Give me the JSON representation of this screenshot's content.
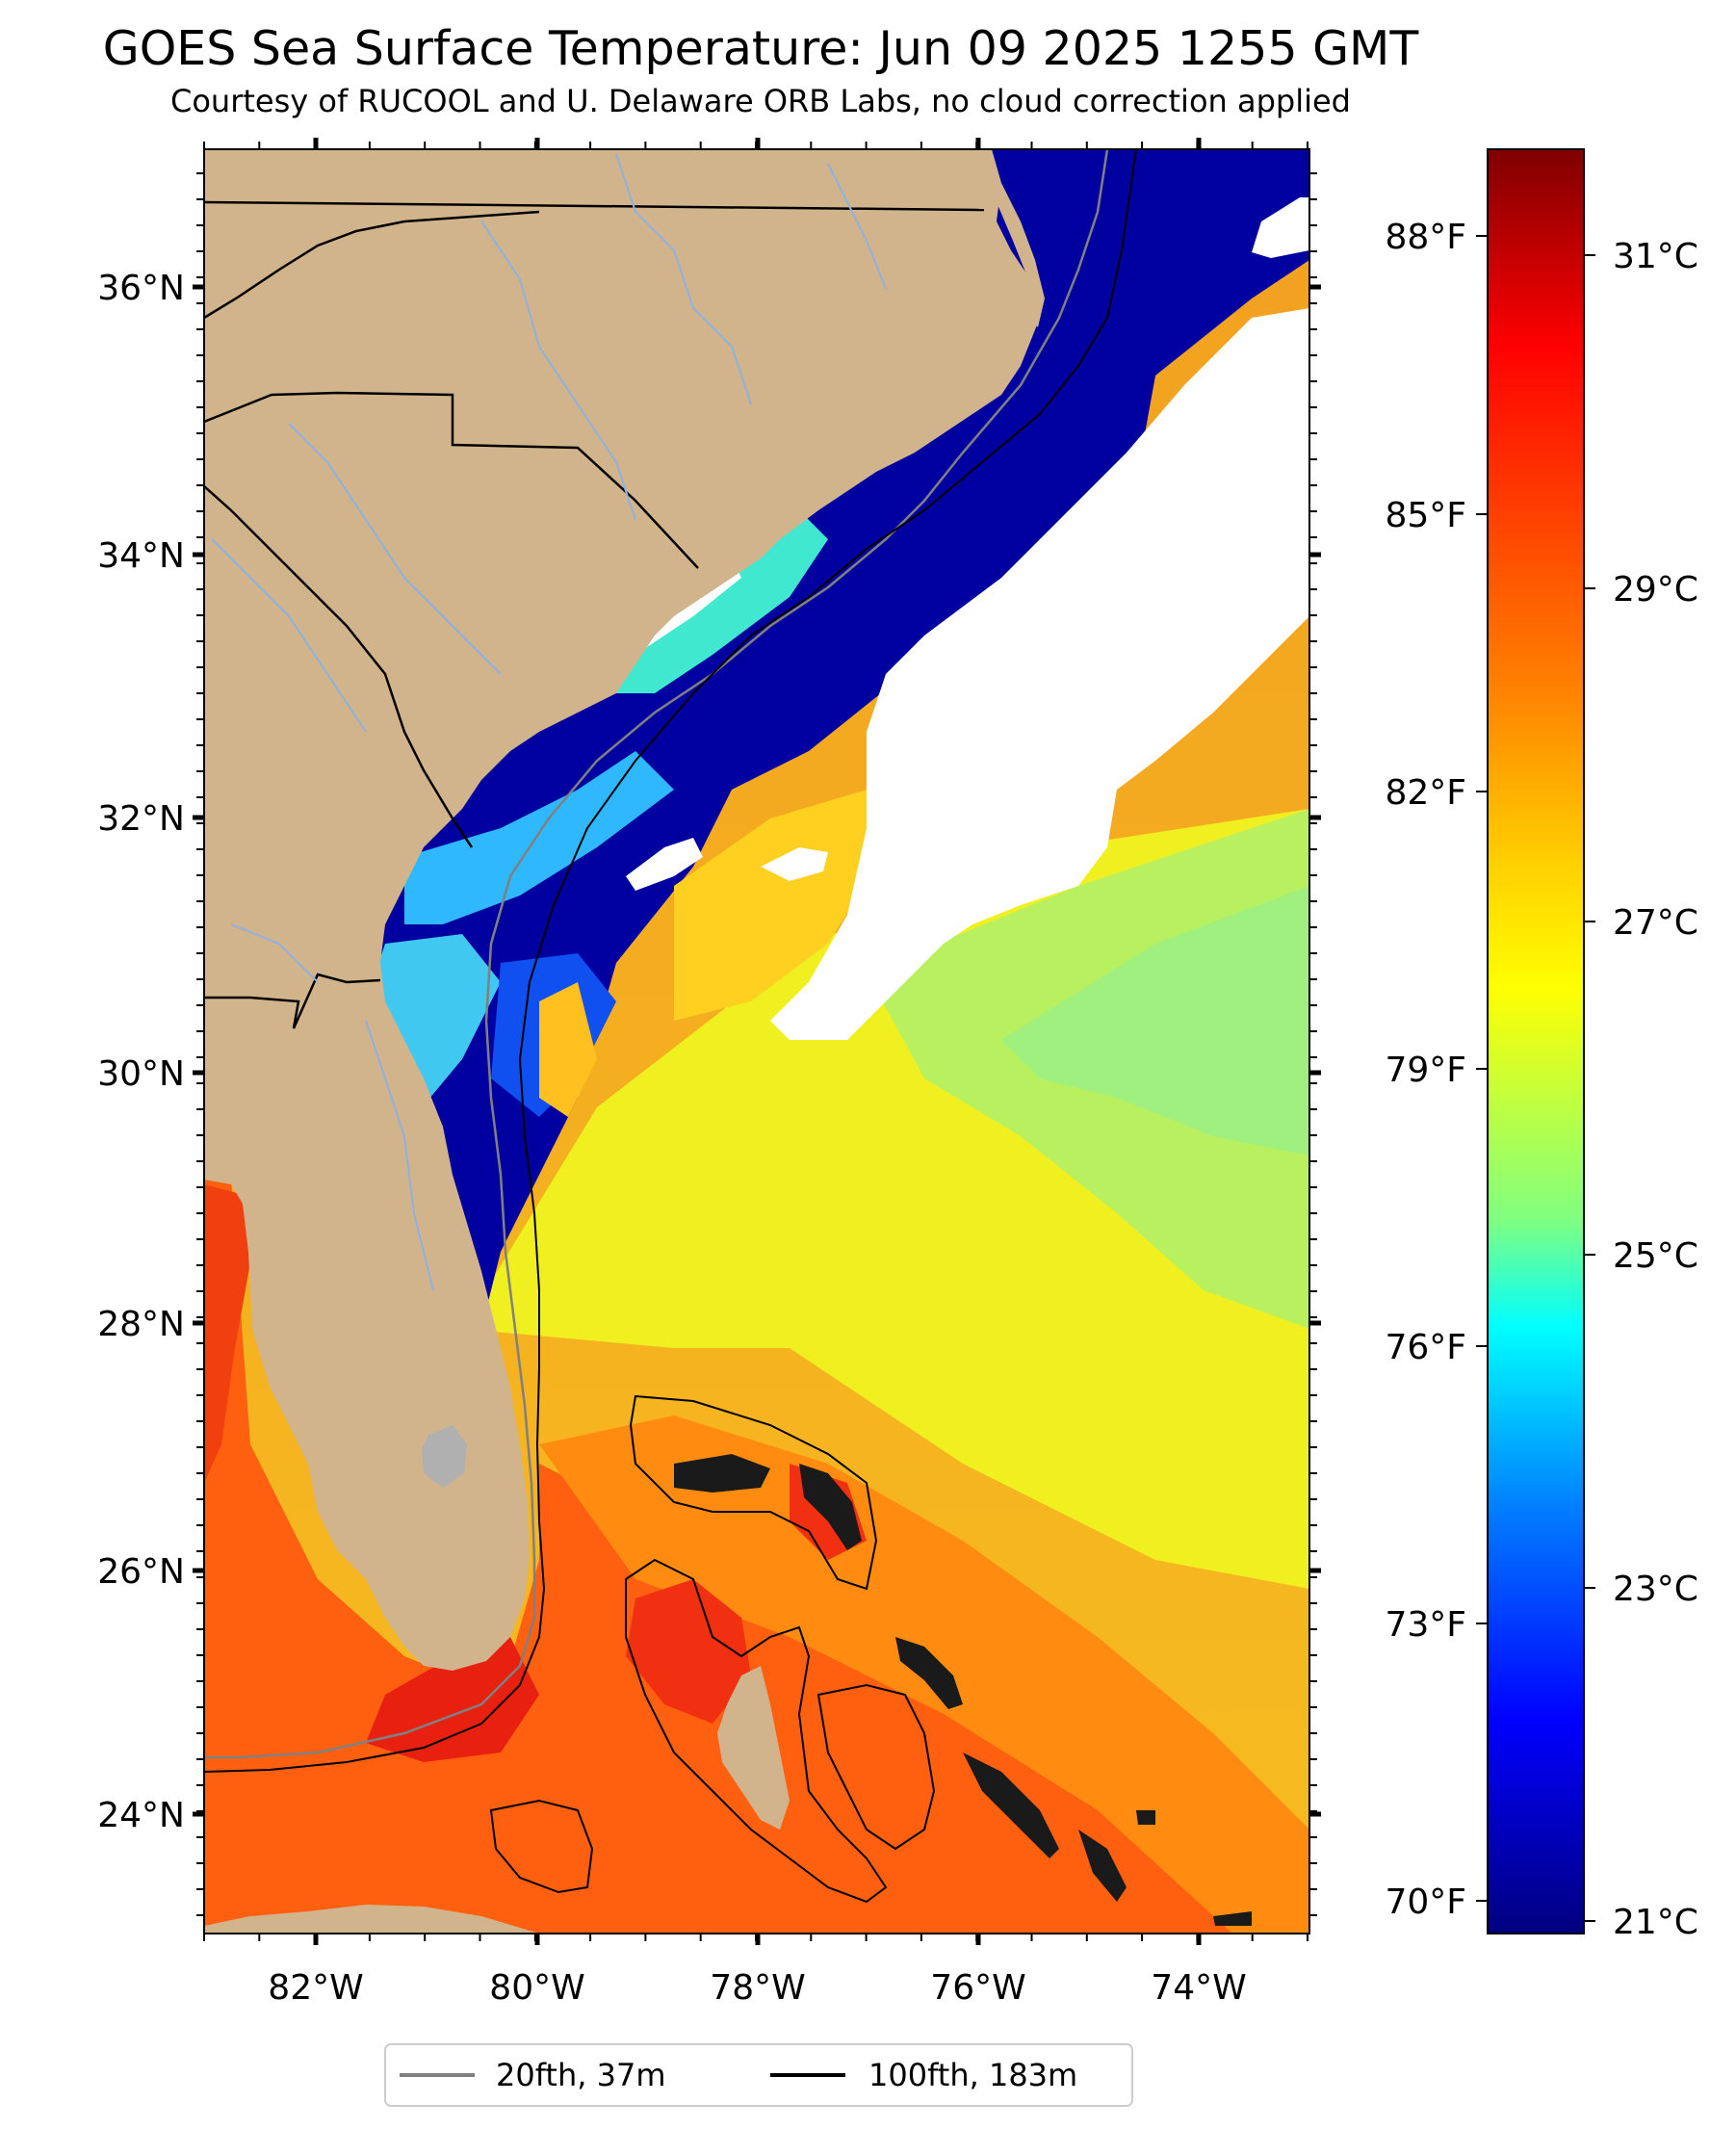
{
  "title": "GOES Sea Surface Temperature: Jun 09 2025 1255 GMT",
  "subtitle": "Courtesy of RUCOOL and U. Delaware ORB Labs, no cloud correction applied",
  "map": {
    "lat_labels": [
      "36°N",
      "34°N",
      "32°N",
      "30°N",
      "28°N",
      "26°N",
      "24°N"
    ],
    "lon_labels": [
      "82°W",
      "80°W",
      "78°W",
      "76°W",
      "74°W"
    ],
    "fahrenheit_labels": [
      "88°F",
      "85°F",
      "82°F",
      "79°F",
      "76°F",
      "73°F",
      "70°F"
    ],
    "colors": {
      "land": "#d2b48c",
      "cloud": "#ffffff",
      "state_border": "#000000",
      "river": "#8fb0e0",
      "lake": "#b0b0b0"
    }
  },
  "colorbar": {
    "labels": [
      "31°C",
      "29°C",
      "27°C",
      "25°C",
      "23°C",
      "21°C"
    ],
    "colormap": "jet",
    "stops": [
      "#7f0000",
      "#ff0000",
      "#ff8000",
      "#ffff00",
      "#80ff80",
      "#00ffff",
      "#0080ff",
      "#0000ff",
      "#00007f"
    ]
  },
  "legend": {
    "items": [
      {
        "label": "20fth, 37m",
        "color": "#808080"
      },
      {
        "label": "100fth, 183m",
        "color": "#000000"
      }
    ]
  }
}
